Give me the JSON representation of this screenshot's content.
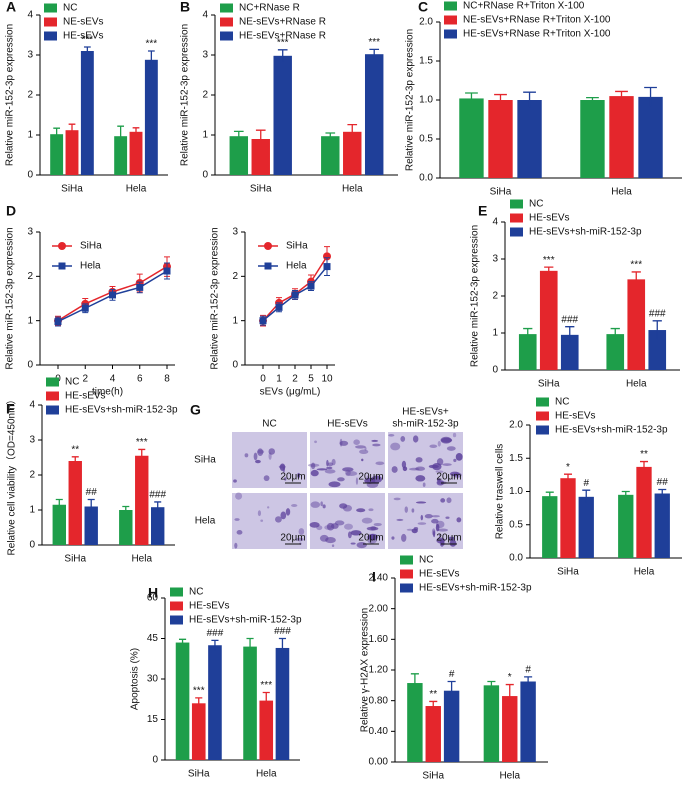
{
  "chart_data": [
    {
      "type": "bar",
      "panel": "A",
      "y_label": "Relative miR-152-3p expression",
      "categories": [
        "SiHa",
        "Hela"
      ],
      "series": [
        {
          "name": "NC",
          "color": "#1e9e4a",
          "values": [
            1.02,
            0.97
          ],
          "errors": [
            0.15,
            0.25
          ]
        },
        {
          "name": "NE-sEVs",
          "color": "#e4262c",
          "values": [
            1.12,
            1.08
          ],
          "errors": [
            0.15,
            0.1
          ]
        },
        {
          "name": "HE-sEVs",
          "color": "#1f3f99",
          "values": [
            3.1,
            2.88
          ],
          "errors": [
            0.1,
            0.22
          ],
          "annotations": [
            "***",
            "***"
          ]
        }
      ],
      "ylim": [
        0,
        4
      ],
      "yticks": [
        0,
        1,
        2,
        3,
        4
      ]
    },
    {
      "type": "bar",
      "panel": "B",
      "y_label": "Relative miR-152-3p expression",
      "categories": [
        "SiHa",
        "Hela"
      ],
      "series": [
        {
          "name": "NC+RNase R",
          "color": "#1e9e4a",
          "values": [
            0.97,
            0.97
          ],
          "errors": [
            0.12,
            0.08
          ]
        },
        {
          "name": "NE-sEVs+RNase R",
          "color": "#e4262c",
          "values": [
            0.9,
            1.08
          ],
          "errors": [
            0.22,
            0.18
          ]
        },
        {
          "name": "HE-sEVs+RNase R",
          "color": "#1f3f99",
          "values": [
            2.98,
            3.02
          ],
          "errors": [
            0.15,
            0.12
          ],
          "annotations": [
            "***",
            "***"
          ]
        }
      ],
      "ylim": [
        0,
        4
      ],
      "yticks": [
        0,
        1,
        2,
        3,
        4
      ]
    },
    {
      "type": "bar",
      "panel": "C",
      "y_label": "Relative miR-152-3p expression",
      "categories": [
        "SiHa",
        "Hela"
      ],
      "series": [
        {
          "name": "NC+RNase R+Triton X-100",
          "color": "#1e9e4a",
          "values": [
            1.02,
            1.0
          ],
          "errors": [
            0.07,
            0.03
          ]
        },
        {
          "name": "NE-sEVs+RNase R+Triton X-100",
          "color": "#e4262c",
          "values": [
            1.0,
            1.05
          ],
          "errors": [
            0.07,
            0.06
          ]
        },
        {
          "name": "HE-sEVs+RNase R+Triton X-100",
          "color": "#1f3f99",
          "values": [
            1.0,
            1.04
          ],
          "errors": [
            0.1,
            0.12
          ]
        }
      ],
      "ylim": [
        0,
        2
      ],
      "yticks": [
        {
          "value": 0,
          "label": "0.0"
        },
        0.5,
        {
          "value": 1,
          "label": "1.0"
        },
        1.5,
        {
          "value": 2,
          "label": "2.0"
        }
      ]
    },
    {
      "type": "line",
      "panel": "D",
      "y_label": "Relative miR-152-3p expression",
      "x_label": "time(h)",
      "categories": [
        "0",
        "2",
        "4",
        "6",
        "8"
      ],
      "series": [
        {
          "name": "SiHa",
          "color": "#e4262c",
          "marker": "circle",
          "values": [
            1.0,
            1.38,
            1.65,
            1.85,
            2.22
          ],
          "errors": [
            0.1,
            0.12,
            0.12,
            0.2,
            0.22
          ]
        },
        {
          "name": "Hela",
          "color": "#1f3f99",
          "marker": "square",
          "values": [
            0.98,
            1.28,
            1.58,
            1.75,
            2.12
          ],
          "errors": [
            0.1,
            0.1,
            0.12,
            0.12,
            0.18
          ]
        }
      ],
      "ylim": [
        0,
        3
      ],
      "yticks": [
        0,
        1,
        2,
        3
      ]
    },
    {
      "type": "line",
      "y_label": "Relative miR-152-3p expression",
      "x_label": "sEVs (μg/mL)",
      "categories": [
        "0",
        "1",
        "2",
        "5",
        "10"
      ],
      "series": [
        {
          "name": "SiHa",
          "color": "#e4262c",
          "marker": "circle",
          "values": [
            1.0,
            1.4,
            1.6,
            1.88,
            2.45
          ],
          "errors": [
            0.12,
            0.12,
            0.12,
            0.15,
            0.22
          ]
        },
        {
          "name": "Hela",
          "color": "#1f3f99",
          "marker": "square",
          "values": [
            1.0,
            1.3,
            1.58,
            1.78,
            2.22
          ],
          "errors": [
            0.1,
            0.1,
            0.1,
            0.1,
            0.2
          ]
        }
      ],
      "ylim": [
        0,
        3
      ],
      "yticks": [
        0,
        1,
        2,
        3
      ]
    },
    {
      "type": "bar",
      "panel": "E",
      "y_label": "Relative miR-152-3p expression",
      "categories": [
        "SiHa",
        "Hela"
      ],
      "series": [
        {
          "name": "NC",
          "color": "#1e9e4a",
          "values": [
            0.97,
            0.97
          ],
          "errors": [
            0.15,
            0.15
          ]
        },
        {
          "name": "HE-sEVs",
          "color": "#e4262c",
          "values": [
            2.68,
            2.45
          ],
          "errors": [
            0.1,
            0.2
          ],
          "annotations": [
            "***",
            "***"
          ]
        },
        {
          "name": "HE-sEVs+sh-miR-152-3p",
          "color": "#1f3f99",
          "values": [
            0.95,
            1.08
          ],
          "errors": [
            0.22,
            0.25
          ],
          "annotations": [
            "###",
            "###"
          ]
        }
      ],
      "ylim": [
        0,
        4
      ],
      "yticks": [
        0,
        1,
        2,
        3,
        4
      ]
    },
    {
      "type": "bar",
      "panel": "F",
      "y_label": "Relative cell viability（OD=450nm）",
      "categories": [
        "SiHa",
        "Hela"
      ],
      "series": [
        {
          "name": "NC",
          "color": "#1e9e4a",
          "values": [
            1.15,
            1.0
          ],
          "errors": [
            0.15,
            0.1
          ]
        },
        {
          "name": "HE-sEVs",
          "color": "#e4262c",
          "values": [
            2.4,
            2.55
          ],
          "errors": [
            0.12,
            0.18
          ],
          "annotations": [
            "**",
            "***"
          ]
        },
        {
          "name": "HE-sEVs+sh-miR-152-3p",
          "color": "#1f3f99",
          "values": [
            1.1,
            1.08
          ],
          "errors": [
            0.2,
            0.15
          ],
          "annotations": [
            "##",
            "###"
          ]
        }
      ],
      "ylim": [
        0,
        4
      ],
      "yticks": [
        0,
        1,
        2,
        3,
        4
      ]
    },
    {
      "type": "bar",
      "y_label": "Relative traswell cells",
      "categories": [
        "SiHa",
        "Hela"
      ],
      "series": [
        {
          "name": "NC",
          "color": "#1e9e4a",
          "values": [
            0.93,
            0.95
          ],
          "errors": [
            0.06,
            0.05
          ]
        },
        {
          "name": "HE-sEVs",
          "color": "#e4262c",
          "values": [
            1.2,
            1.37
          ],
          "errors": [
            0.06,
            0.08
          ],
          "annotations": [
            "*",
            "**"
          ]
        },
        {
          "name": "HE-sEVs+sh-miR-152-3p",
          "color": "#1f3f99",
          "values": [
            0.92,
            0.97
          ],
          "errors": [
            0.1,
            0.06
          ],
          "annotations": [
            "#",
            "##"
          ]
        }
      ],
      "ylim": [
        0,
        2
      ],
      "yticks": [
        {
          "value": 0,
          "label": "0.0"
        },
        0.5,
        {
          "value": 1,
          "label": "1.0"
        },
        1.5,
        {
          "value": 2,
          "label": "2.0"
        }
      ]
    },
    {
      "type": "bar",
      "panel": "H",
      "y_label": "Apoptosis (%)",
      "categories": [
        "SiHa",
        "Hela"
      ],
      "series": [
        {
          "name": "NC",
          "color": "#1e9e4a",
          "values": [
            43.5,
            42
          ],
          "errors": [
            1.2,
            3
          ]
        },
        {
          "name": "HE-sEVs",
          "color": "#e4262c",
          "values": [
            21,
            22
          ],
          "errors": [
            2,
            3
          ],
          "annotations": [
            "***",
            "***"
          ]
        },
        {
          "name": "HE-sEVs+sh-miR-152-3p",
          "color": "#1f3f99",
          "values": [
            42.5,
            41.5
          ],
          "errors": [
            1.8,
            3.5
          ],
          "annotations": [
            "###",
            "###"
          ]
        }
      ],
      "ylim": [
        0,
        60
      ],
      "yticks": [
        0,
        15,
        30,
        45,
        60
      ]
    },
    {
      "type": "bar",
      "panel": "I",
      "y_label": "Relative γ-H2AX expression",
      "categories": [
        "SiHa",
        "Hela"
      ],
      "series": [
        {
          "name": "NC",
          "color": "#1e9e4a",
          "values": [
            1.03,
            1.0
          ],
          "errors": [
            0.12,
            0.05
          ]
        },
        {
          "name": "HE-sEVs",
          "color": "#e4262c",
          "values": [
            0.73,
            0.86
          ],
          "errors": [
            0.06,
            0.15
          ],
          "annotations": [
            "**",
            "*"
          ]
        },
        {
          "name": "HE-sEVs+sh-miR-152-3p",
          "color": "#1f3f99",
          "values": [
            0.93,
            1.05
          ],
          "errors": [
            0.12,
            0.06
          ],
          "annotations": [
            "#",
            "#"
          ]
        }
      ],
      "ylim": [
        0,
        2.4
      ],
      "yticks": [
        {
          "value": 0,
          "label": "0.00"
        },
        {
          "value": 0.4,
          "label": "0.40"
        },
        {
          "value": 0.8,
          "label": "0.80"
        },
        {
          "value": 1.2,
          "label": "1.20"
        },
        {
          "value": 1.6,
          "label": "1.60"
        },
        {
          "value": 2,
          "label": "2.00"
        },
        {
          "value": 2.4,
          "label": "2.40"
        }
      ]
    }
  ],
  "image_panel": {
    "panel": "G",
    "columns": [
      [
        "NC"
      ],
      [
        "HE-sEVs"
      ],
      [
        "HE-sEVs+",
        "sh-miR-152-3p"
      ]
    ],
    "rows": [
      "SiHa",
      "Hela"
    ],
    "scale_bar": "20μm"
  }
}
